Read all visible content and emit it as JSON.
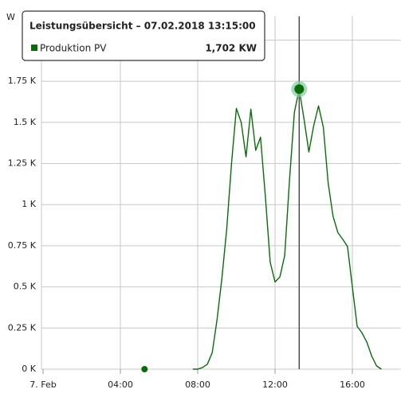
{
  "chart_data": {
    "type": "line",
    "y_unit": "W",
    "x": [
      5.25,
      5.5,
      7.75,
      8.0,
      8.25,
      8.5,
      8.75,
      9.0,
      9.25,
      9.5,
      9.75,
      10.0,
      10.25,
      10.5,
      10.75,
      11.0,
      11.25,
      11.5,
      11.75,
      12.0,
      12.25,
      12.5,
      12.75,
      13.0,
      13.25,
      13.5,
      13.75,
      14.0,
      14.25,
      14.5,
      14.75,
      15.0,
      15.25,
      15.5,
      15.75,
      16.0,
      16.25,
      16.5,
      16.75,
      17.0,
      17.25,
      17.5
    ],
    "series": [
      {
        "name": "Produktion PV",
        "color": "#0b6b0b",
        "values": [
          0,
          null,
          0,
          0,
          10,
          30,
          100,
          300,
          550,
          850,
          1250,
          1585,
          1500,
          1290,
          1580,
          1330,
          1410,
          1050,
          650,
          530,
          560,
          690,
          1150,
          1560,
          1702,
          1520,
          1320,
          1480,
          1600,
          1470,
          1130,
          930,
          830,
          790,
          745,
          500,
          260,
          220,
          164,
          80,
          20,
          0
        ]
      }
    ],
    "xlim": [
      0,
      18.5
    ],
    "xticks": [
      {
        "value": 0,
        "label": "7. Feb"
      },
      {
        "value": 4,
        "label": "04:00"
      },
      {
        "value": 8,
        "label": "08:00"
      },
      {
        "value": 12,
        "label": "12:00"
      },
      {
        "value": 16,
        "label": "16:00"
      }
    ],
    "ylim": [
      0,
      2000
    ],
    "yticks": [
      {
        "value": 0,
        "label": "0 K"
      },
      {
        "value": 250,
        "label": "0.25 K"
      },
      {
        "value": 500,
        "label": "0.5 K"
      },
      {
        "value": 750,
        "label": "0.75 K"
      },
      {
        "value": 1000,
        "label": "1 K"
      },
      {
        "value": 1250,
        "label": "1.25 K"
      },
      {
        "value": 1500,
        "label": "1.5 K"
      },
      {
        "value": 1750,
        "label": "1.75 K"
      },
      {
        "value": 2000,
        "label": "2 K"
      }
    ],
    "grid": true,
    "crosshair_x": 13.25,
    "tooltip": {
      "title": "Leistungsübersicht – 07.02.2018 13:15:00",
      "series_name": "Produktion PV",
      "value_label": "1,702 KW"
    }
  }
}
